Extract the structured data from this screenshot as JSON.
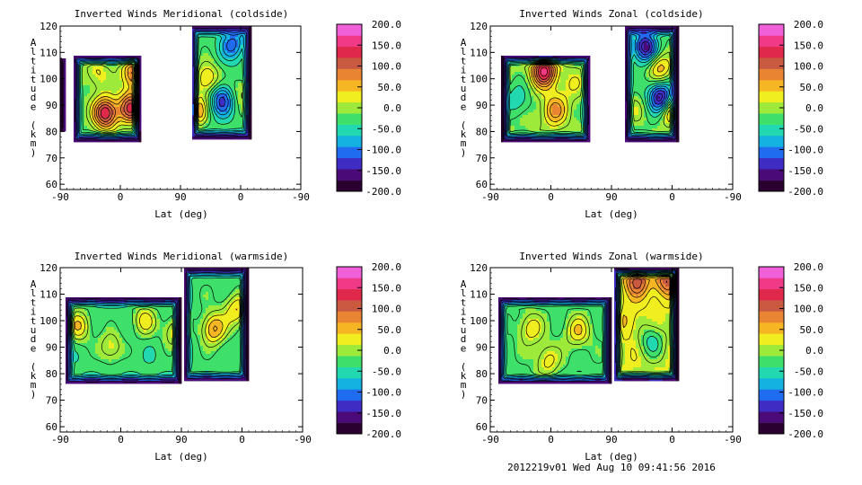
{
  "footer": "2012219v01 Wed Aug 10 09:41:56 2016",
  "colors": {
    "background": "#ffffff",
    "axes": "#000000",
    "contour_line": "#000000",
    "colormap": [
      "#2a0030",
      "#4a0a78",
      "#3f2cc2",
      "#1f6cf0",
      "#14b2e0",
      "#22d8b0",
      "#3ee06a",
      "#9eea3a",
      "#f0ee1e",
      "#f6b522",
      "#e98432",
      "#c95a40",
      "#e0284a",
      "#f03a88",
      "#f060d8"
    ]
  },
  "chart_data": [
    {
      "type": "heatmap",
      "title": "Inverted Winds Meridional (coldside)",
      "xlabel": "Lat (deg)",
      "ylabel": "Altitude (km)",
      "xticks": [
        "-90",
        "0",
        "90",
        "0",
        "-90"
      ],
      "yticks": [
        60,
        70,
        80,
        90,
        100,
        110,
        120
      ],
      "ylim": [
        58,
        120
      ],
      "colorbar": {
        "range": [
          -200,
          200
        ],
        "ticks": [
          "200.0",
          "150.0",
          "100.0",
          "50.0",
          "0.0",
          "-50.0",
          "-100.0",
          "-150.0",
          "-200.0"
        ]
      },
      "regions": [
        {
          "x": [
            -88,
            -80
          ],
          "y": [
            80,
            108
          ],
          "base": -70
        },
        {
          "x": [
            -70,
            30
          ],
          "y": [
            76,
            109
          ],
          "base": -20
        },
        {
          "x": [
            106,
            195
          ],
          "y": [
            77,
            120
          ],
          "base": -30
        }
      ],
      "features": [
        {
          "x": -22,
          "y": 87,
          "value": 145
        },
        {
          "x": 16,
          "y": 89,
          "value": 120
        },
        {
          "x": 20,
          "y": 102,
          "value": 90
        },
        {
          "x": -35,
          "y": 102,
          "value": 25
        },
        {
          "x": 130,
          "y": 100,
          "value": 50
        },
        {
          "x": 152,
          "y": 92,
          "value": -130
        },
        {
          "x": 168,
          "y": 113,
          "value": -110
        },
        {
          "x": 112,
          "y": 88,
          "value": 70
        },
        {
          "x": 180,
          "y": 95,
          "value": 10
        }
      ]
    },
    {
      "type": "heatmap",
      "title": "Inverted Winds Zonal (coldside)",
      "xlabel": "Lat (deg)",
      "ylabel": "Altitude (km)",
      "xticks": [
        "-90",
        "0",
        "90",
        "0",
        "-90"
      ],
      "yticks": [
        60,
        70,
        80,
        90,
        100,
        110,
        120
      ],
      "ylim": [
        58,
        120
      ],
      "colorbar": {
        "range": [
          -200,
          200
        ],
        "ticks": [
          "200.0",
          "150.0",
          "100.0",
          "50.0",
          "0.0",
          "-50.0",
          "-100.0",
          "-150.0",
          "-200.0"
        ]
      },
      "regions": [
        {
          "x": [
            -72,
            58
          ],
          "y": [
            76,
            109
          ],
          "base": -10
        },
        {
          "x": [
            110,
            188
          ],
          "y": [
            76,
            120
          ],
          "base": -20
        }
      ],
      "features": [
        {
          "x": -10,
          "y": 103,
          "value": 150
        },
        {
          "x": 5,
          "y": 88,
          "value": 70
        },
        {
          "x": -50,
          "y": 92,
          "value": -60
        },
        {
          "x": 30,
          "y": 98,
          "value": 20
        },
        {
          "x": 140,
          "y": 112,
          "value": -160
        },
        {
          "x": 163,
          "y": 93,
          "value": -170
        },
        {
          "x": 162,
          "y": 104,
          "value": 55
        },
        {
          "x": 178,
          "y": 88,
          "value": 60
        },
        {
          "x": 125,
          "y": 88,
          "value": 5
        }
      ]
    },
    {
      "type": "heatmap",
      "title": "Inverted Winds Meridional (warmside)",
      "xlabel": "Lat (deg)",
      "ylabel": "Altitude (km)",
      "xticks": [
        "-90",
        "0",
        "90",
        "0",
        "-90"
      ],
      "yticks": [
        60,
        70,
        80,
        90,
        100,
        110,
        120
      ],
      "ylim": [
        58,
        120
      ],
      "colorbar": {
        "range": [
          -200,
          200
        ],
        "ticks": [
          "200.0",
          "150.0",
          "100.0",
          "50.0",
          "0.0",
          "-50.0",
          "-100.0",
          "-150.0",
          "-200.0"
        ]
      },
      "regions": [
        {
          "x": [
            -82,
            88
          ],
          "y": [
            76,
            109
          ],
          "base": -35
        },
        {
          "x": [
            93,
            188
          ],
          "y": [
            77,
            120
          ],
          "base": -30
        }
      ],
      "features": [
        {
          "x": -62,
          "y": 98,
          "value": 40
        },
        {
          "x": -15,
          "y": 90,
          "value": 25
        },
        {
          "x": 35,
          "y": 100,
          "value": 30
        },
        {
          "x": 80,
          "y": 96,
          "value": 25
        },
        {
          "x": 138,
          "y": 97,
          "value": 65
        },
        {
          "x": 172,
          "y": 104,
          "value": 40
        },
        {
          "x": 125,
          "y": 110,
          "value": -25
        }
      ]
    },
    {
      "type": "heatmap",
      "title": "Inverted Winds Zonal (warmside)",
      "xlabel": "Lat (deg)",
      "ylabel": "Altitude (km)",
      "xticks": [
        "-90",
        "0",
        "90",
        "0",
        "-90"
      ],
      "yticks": [
        60,
        70,
        80,
        90,
        100,
        110,
        120
      ],
      "ylim": [
        58,
        120
      ],
      "colorbar": {
        "range": [
          -200,
          200
        ],
        "ticks": [
          "200.0",
          "150.0",
          "100.0",
          "50.0",
          "0.0",
          "-50.0",
          "-100.0",
          "-150.0",
          "-200.0"
        ]
      },
      "regions": [
        {
          "x": [
            -78,
            88
          ],
          "y": [
            76,
            109
          ],
          "base": -25
        },
        {
          "x": [
            93,
            188
          ],
          "y": [
            77,
            120
          ],
          "base": 15
        }
      ],
      "features": [
        {
          "x": -30,
          "y": 97,
          "value": 35
        },
        {
          "x": -5,
          "y": 85,
          "value": 30
        },
        {
          "x": 40,
          "y": 96,
          "value": 40
        },
        {
          "x": 128,
          "y": 115,
          "value": 110
        },
        {
          "x": 172,
          "y": 115,
          "value": 100
        },
        {
          "x": 150,
          "y": 92,
          "value": -50
        },
        {
          "x": 112,
          "y": 100,
          "value": 40
        }
      ]
    }
  ]
}
